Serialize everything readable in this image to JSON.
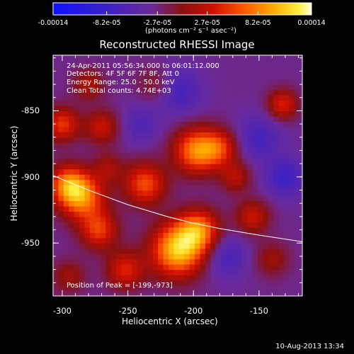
{
  "chart_data": {
    "type": "heatmap",
    "title": "Reconstructed RHESSI Image",
    "xlabel": "Heliocentric X (arcsec)",
    "ylabel": "Heliocentric Y (arcsec)",
    "xlim": [
      -307,
      -117
    ],
    "ylim": [
      -990,
      -808
    ],
    "x_ticks": [
      "-300",
      "-250",
      "-200",
      "-150"
    ],
    "x_tick_values": [
      -300,
      -250,
      -200,
      -150
    ],
    "y_ticks": [
      "-850",
      "-900",
      "-950"
    ],
    "y_tick_values": [
      -850,
      -900,
      -950
    ],
    "colorbar": {
      "ticks": [
        "-0.00014",
        "-8.2e-05",
        "-2.7e-05",
        "2.7e-05",
        "8.2e-05",
        "0.00014"
      ],
      "tick_values": [
        -0.00014,
        -8.2e-05,
        -2.7e-05,
        2.7e-05,
        8.2e-05,
        0.00014
      ],
      "range": [
        -0.00014,
        0.00014
      ],
      "units": "(photons cm⁻² s⁻¹ asec⁻²)",
      "colormap": "blue-purple-red-orange-yellow-white"
    },
    "annotations": [
      "24-Apr-2011 05:56:34.000 to 06:01:12.000",
      "Detectors: 4F 5F 6F 7F 8F, Att 0",
      "Energy Range: 25.0 - 50.0 keV",
      "Clean    Total counts: 4.74E+03"
    ],
    "peak_label": "Position of Peak = [-199,-973]",
    "peak": [
      -199,
      -973
    ],
    "limb_curve": {
      "x": [
        -307,
        -280,
        -250,
        -220,
        -200,
        -180,
        -150,
        -117
      ],
      "y": [
        -899,
        -910,
        -921,
        -930,
        -935,
        -939,
        -944,
        -949
      ]
    },
    "blobs": [
      {
        "x": -212,
        "y": -955,
        "value": 0.00014,
        "spread": 14
      },
      {
        "x": -196,
        "y": -940,
        "value": 0.0001,
        "spread": 11
      },
      {
        "x": -285,
        "y": -915,
        "value": 0.00011,
        "spread": 12
      },
      {
        "x": -296,
        "y": -905,
        "value": 9e-05,
        "spread": 10
      },
      {
        "x": -198,
        "y": -880,
        "value": 0.00011,
        "spread": 12
      },
      {
        "x": -180,
        "y": -878,
        "value": 7e-05,
        "spread": 10
      },
      {
        "x": -237,
        "y": -905,
        "value": 9e-05,
        "spread": 11
      },
      {
        "x": -272,
        "y": -940,
        "value": 8e-05,
        "spread": 10
      },
      {
        "x": -300,
        "y": -860,
        "value": 8e-05,
        "spread": 9
      },
      {
        "x": -270,
        "y": -862,
        "value": 6e-05,
        "spread": 9
      },
      {
        "x": -252,
        "y": -970,
        "value": 7e-05,
        "spread": 10
      },
      {
        "x": -155,
        "y": -930,
        "value": 6e-05,
        "spread": 9
      },
      {
        "x": -132,
        "y": -845,
        "value": 7e-05,
        "spread": 8
      },
      {
        "x": -168,
        "y": -900,
        "value": 5e-05,
        "spread": 8
      },
      {
        "x": -140,
        "y": -962,
        "value": 4e-05,
        "spread": 9
      },
      {
        "x": -295,
        "y": -975,
        "value": 4e-05,
        "spread": 9
      },
      {
        "x": -230,
        "y": -830,
        "value": 3e-05,
        "spread": 9
      },
      {
        "x": -280,
        "y": -830,
        "value": 5e-05,
        "spread": 8
      },
      {
        "x": -265,
        "y": -893,
        "value": 4e-05,
        "spread": 8
      },
      {
        "x": -210,
        "y": -835,
        "value": -4e-05,
        "spread": 12
      },
      {
        "x": -150,
        "y": -870,
        "value": -4e-05,
        "spread": 12
      },
      {
        "x": -130,
        "y": -900,
        "value": -5e-05,
        "spread": 10
      },
      {
        "x": -175,
        "y": -960,
        "value": -4e-05,
        "spread": 11
      },
      {
        "x": -240,
        "y": -860,
        "value": -3e-05,
        "spread": 10
      }
    ]
  },
  "footer": {
    "timestamp": "10-Aug-2013 13:34"
  }
}
